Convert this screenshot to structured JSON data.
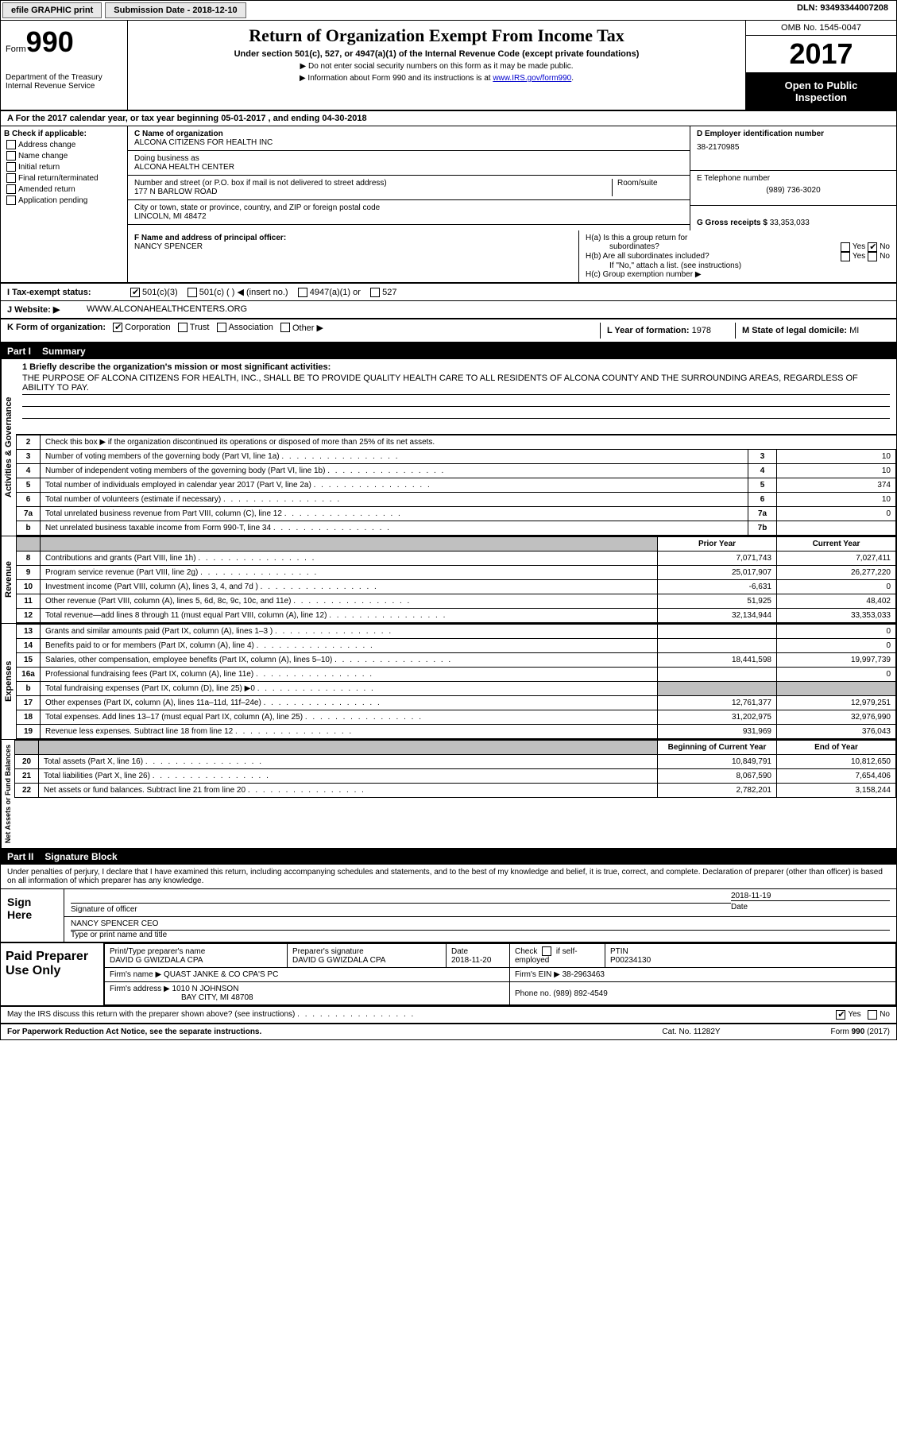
{
  "topbar": {
    "efile": "efile GRAPHIC print",
    "submission": "Submission Date - 2018-12-10",
    "dln": "DLN: 93493344007208"
  },
  "header": {
    "form_label": "Form",
    "form_no": "990",
    "dept1": "Department of the Treasury",
    "dept2": "Internal Revenue Service",
    "title": "Return of Organization Exempt From Income Tax",
    "sub1": "Under section 501(c), 527, or 4947(a)(1) of the Internal Revenue Code (except private foundations)",
    "sub2": "▶ Do not enter social security numbers on this form as it may be made public.",
    "sub3_pre": "▶ Information about Form 990 and its instructions is at ",
    "sub3_link": "www.IRS.gov/form990",
    "omb": "OMB No. 1545-0047",
    "year": "2017",
    "open1": "Open to Public",
    "open2": "Inspection"
  },
  "section_a": "A  For the 2017 calendar year, or tax year beginning 05-01-2017   , and ending 04-30-2018",
  "col_b": {
    "title": "B Check if applicable:",
    "items": [
      "Address change",
      "Name change",
      "Initial return",
      "Final return/terminated",
      "Amended return",
      "Application pending"
    ]
  },
  "col_c": {
    "name_label": "C Name of organization",
    "name": "ALCONA CITIZENS FOR HEALTH INC",
    "dba_label": "Doing business as",
    "dba": "ALCONA HEALTH CENTER",
    "addr_label": "Number and street (or P.O. box if mail is not delivered to street address)",
    "room_label": "Room/suite",
    "addr": "177 N BARLOW ROAD",
    "city_label": "City or town, state or province, country, and ZIP or foreign postal code",
    "city": "LINCOLN, MI  48472",
    "officer_label": "F Name and address of principal officer:",
    "officer": "NANCY SPENCER"
  },
  "col_d": {
    "ein_label": "D Employer identification number",
    "ein": "38-2170985",
    "tel_label": "E Telephone number",
    "tel": "(989) 736-3020",
    "gross_label": "G Gross receipts $",
    "gross": "33,353,033"
  },
  "col_h": {
    "ha": "H(a)  Is this a group return for",
    "ha2": "subordinates?",
    "hb": "H(b)  Are all subordinates included?",
    "hb_note": "If \"No,\" attach a list. (see instructions)",
    "hc": "H(c)  Group exemption number ▶"
  },
  "row_i": {
    "label": "I  Tax-exempt status:",
    "opt1": "501(c)(3)",
    "opt2": "501(c) (  ) ◀ (insert no.)",
    "opt3": "4947(a)(1) or",
    "opt4": "527"
  },
  "row_j": {
    "label": "J  Website: ▶",
    "val": "WWW.ALCONAHEALTHCENTERS.ORG"
  },
  "row_k": {
    "label": "K Form of organization:",
    "opt1": "Corporation",
    "opt2": "Trust",
    "opt3": "Association",
    "opt4": "Other ▶",
    "l_label": "L Year of formation:",
    "l_val": "1978",
    "m_label": "M State of legal domicile:",
    "m_val": "MI"
  },
  "part1": {
    "num": "Part I",
    "title": "Summary"
  },
  "mission": {
    "line1_label": "1  Briefly describe the organization's mission or most significant activities:",
    "text": "THE PURPOSE OF ALCONA CITIZENS FOR HEALTH, INC., SHALL BE TO PROVIDE QUALITY HEALTH CARE TO ALL RESIDENTS OF ALCONA COUNTY AND THE SURROUNDING AREAS, REGARDLESS OF ABILITY TO PAY."
  },
  "summary": {
    "line2": "Check this box ▶       if the organization discontinued its operations or disposed of more than 25% of its net assets.",
    "rows_ag": [
      {
        "n": "3",
        "lbl": "Number of voting members of the governing body (Part VI, line 1a)",
        "sc": "3",
        "v": "10"
      },
      {
        "n": "4",
        "lbl": "Number of independent voting members of the governing body (Part VI, line 1b)",
        "sc": "4",
        "v": "10"
      },
      {
        "n": "5",
        "lbl": "Total number of individuals employed in calendar year 2017 (Part V, line 2a)",
        "sc": "5",
        "v": "374"
      },
      {
        "n": "6",
        "lbl": "Total number of volunteers (estimate if necessary)",
        "sc": "6",
        "v": "10"
      },
      {
        "n": "7a",
        "lbl": "Total unrelated business revenue from Part VIII, column (C), line 12",
        "sc": "7a",
        "v": "0"
      },
      {
        "n": "b",
        "lbl": "Net unrelated business taxable income from Form 990-T, line 34",
        "sc": "7b",
        "v": ""
      }
    ],
    "prior_hdr": "Prior Year",
    "current_hdr": "Current Year",
    "rows_rev": [
      {
        "n": "8",
        "lbl": "Contributions and grants (Part VIII, line 1h)",
        "py": "7,071,743",
        "cy": "7,027,411"
      },
      {
        "n": "9",
        "lbl": "Program service revenue (Part VIII, line 2g)",
        "py": "25,017,907",
        "cy": "26,277,220"
      },
      {
        "n": "10",
        "lbl": "Investment income (Part VIII, column (A), lines 3, 4, and 7d )",
        "py": "-6,631",
        "cy": "0"
      },
      {
        "n": "11",
        "lbl": "Other revenue (Part VIII, column (A), lines 5, 6d, 8c, 9c, 10c, and 11e)",
        "py": "51,925",
        "cy": "48,402"
      },
      {
        "n": "12",
        "lbl": "Total revenue—add lines 8 through 11 (must equal Part VIII, column (A), line 12)",
        "py": "32,134,944",
        "cy": "33,353,033"
      }
    ],
    "rows_exp": [
      {
        "n": "13",
        "lbl": "Grants and similar amounts paid (Part IX, column (A), lines 1–3 )",
        "py": "",
        "cy": "0"
      },
      {
        "n": "14",
        "lbl": "Benefits paid to or for members (Part IX, column (A), line 4)",
        "py": "",
        "cy": "0"
      },
      {
        "n": "15",
        "lbl": "Salaries, other compensation, employee benefits (Part IX, column (A), lines 5–10)",
        "py": "18,441,598",
        "cy": "19,997,739"
      },
      {
        "n": "16a",
        "lbl": "Professional fundraising fees (Part IX, column (A), line 11e)",
        "py": "",
        "cy": "0"
      },
      {
        "n": "b",
        "lbl": "Total fundraising expenses (Part IX, column (D), line 25) ▶0",
        "py": "shade",
        "cy": "shade"
      },
      {
        "n": "17",
        "lbl": "Other expenses (Part IX, column (A), lines 11a–11d, 11f–24e)",
        "py": "12,761,377",
        "cy": "12,979,251"
      },
      {
        "n": "18",
        "lbl": "Total expenses. Add lines 13–17 (must equal Part IX, column (A), line 25)",
        "py": "31,202,975",
        "cy": "32,976,990"
      },
      {
        "n": "19",
        "lbl": "Revenue less expenses. Subtract line 18 from line 12",
        "py": "931,969",
        "cy": "376,043"
      }
    ],
    "begin_hdr": "Beginning of Current Year",
    "end_hdr": "End of Year",
    "rows_na": [
      {
        "n": "20",
        "lbl": "Total assets (Part X, line 16)",
        "py": "10,849,791",
        "cy": "10,812,650"
      },
      {
        "n": "21",
        "lbl": "Total liabilities (Part X, line 26)",
        "py": "8,067,590",
        "cy": "7,654,406"
      },
      {
        "n": "22",
        "lbl": "Net assets or fund balances. Subtract line 21 from line 20",
        "py": "2,782,201",
        "cy": "3,158,244"
      }
    ]
  },
  "vert_labels": {
    "ag": "Activities & Governance",
    "rev": "Revenue",
    "exp": "Expenses",
    "na": "Net Assets or Fund Balances"
  },
  "part2": {
    "num": "Part II",
    "title": "Signature Block"
  },
  "sig": {
    "intro": "Under penalties of perjury, I declare that I have examined this return, including accompanying schedules and statements, and to the best of my knowledge and belief, it is true, correct, and complete. Declaration of preparer (other than officer) is based on all information of which preparer has any knowledge.",
    "sign_here": "Sign Here",
    "sig_officer": "Signature of officer",
    "date": "Date",
    "date_val": "2018-11-19",
    "name_title": "NANCY SPENCER CEO",
    "name_title_label": "Type or print name and title"
  },
  "prep": {
    "label": "Paid Preparer Use Only",
    "name_label": "Print/Type preparer's name",
    "name": "DAVID G GWIZDALA CPA",
    "sig_label": "Preparer's signature",
    "sig": "DAVID G GWIZDALA CPA",
    "date_label": "Date",
    "date": "2018-11-20",
    "check_label": "Check         if self-employed",
    "ptin_label": "PTIN",
    "ptin": "P00234130",
    "firm_name_label": "Firm's name     ▶",
    "firm_name": "QUAST JANKE & CO CPA'S PC",
    "firm_ein_label": "Firm's EIN ▶",
    "firm_ein": "38-2963463",
    "firm_addr_label": "Firm's address ▶",
    "firm_addr": "1010 N JOHNSON",
    "firm_city": "BAY CITY, MI  48708",
    "phone_label": "Phone no.",
    "phone": "(989) 892-4549"
  },
  "discuss": {
    "q": "May the IRS discuss this return with the preparer shown above? (see instructions)",
    "yes": "Yes",
    "no": "No"
  },
  "footer": {
    "left": "For Paperwork Reduction Act Notice, see the separate instructions.",
    "center": "Cat. No. 11282Y",
    "right": "Form 990 (2017)"
  }
}
